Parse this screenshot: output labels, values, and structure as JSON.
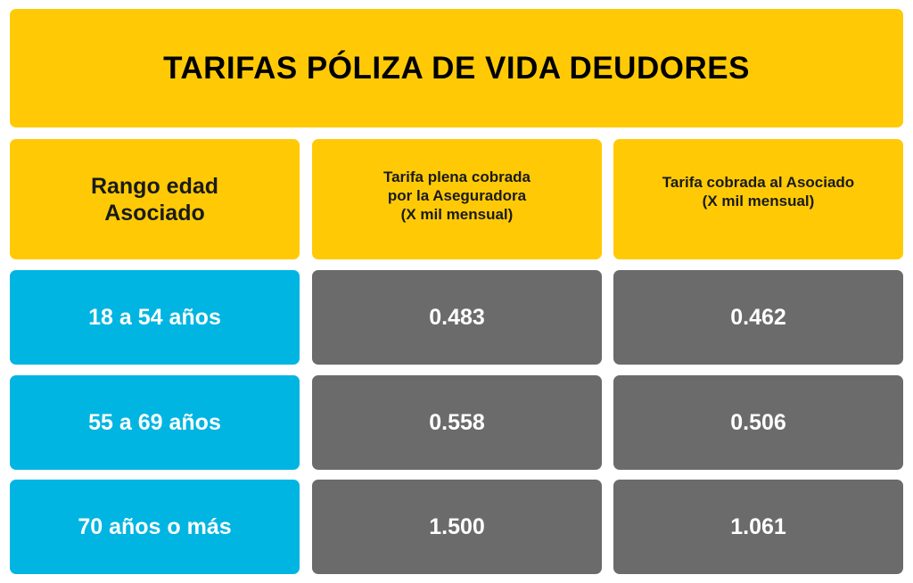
{
  "title": "TARIFAS PÓLIZA DE VIDA DEUDORES",
  "headers": {
    "age_range": [
      "Rango edad",
      "Asociado"
    ],
    "full_rate": [
      "Tarifa plena cobrada",
      "por la Aseguradora",
      "(X mil mensual)"
    ],
    "member_rate": [
      "Tarifa cobrada al Asociado",
      "(X mil mensual)"
    ]
  },
  "rows": [
    {
      "age": "18 a 54 años",
      "full_rate": "0.483",
      "member_rate": "0.462"
    },
    {
      "age": "55 a 69 años",
      "full_rate": "0.558",
      "member_rate": "0.506"
    },
    {
      "age": "70 años o más",
      "full_rate": "1.500",
      "member_rate": "1.061"
    }
  ],
  "colors": {
    "header_yellow": "#FFCA05",
    "age_blue": "#00B5E2",
    "value_gray": "#6B6B6B"
  }
}
